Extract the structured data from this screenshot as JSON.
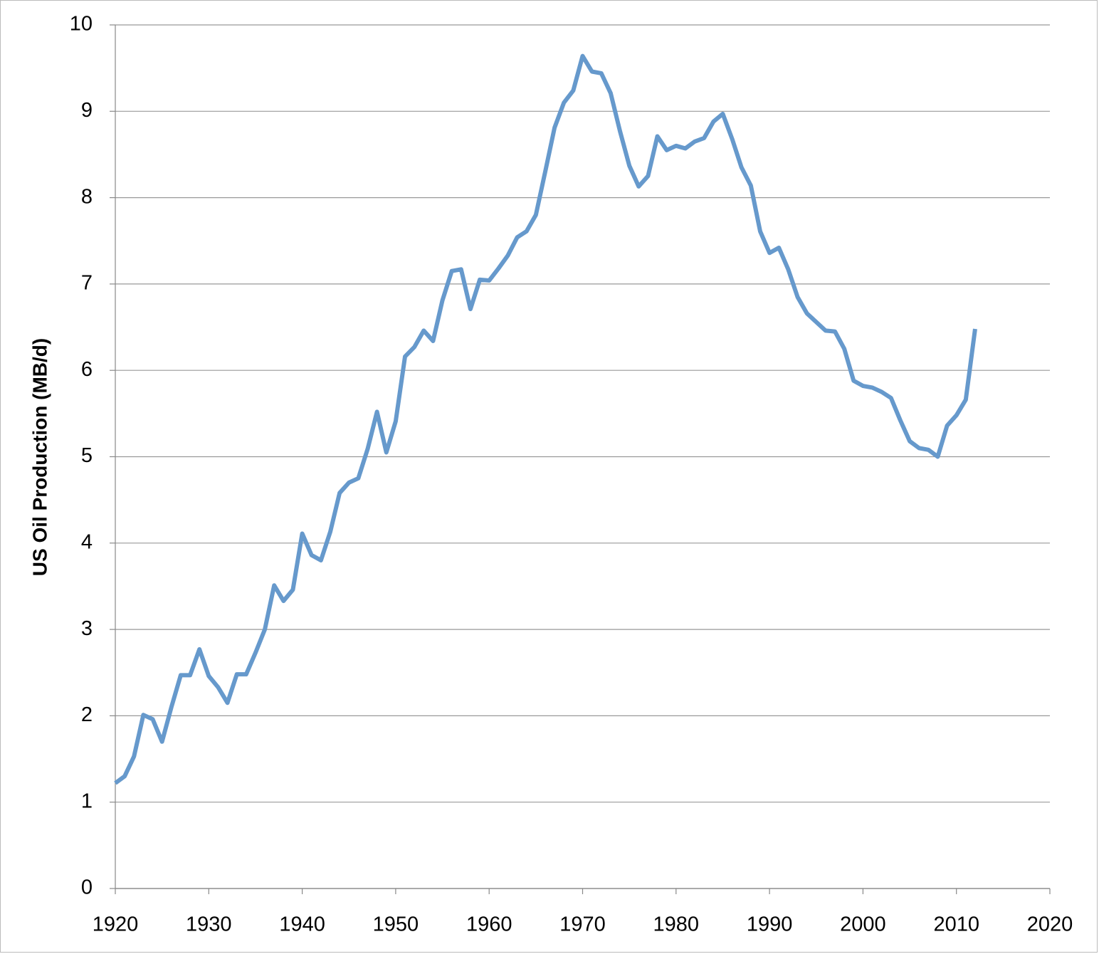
{
  "chart_data": {
    "type": "line",
    "y_label": "US Oil Production (MB/d)",
    "x": [
      1920,
      1921,
      1922,
      1923,
      1924,
      1925,
      1926,
      1927,
      1928,
      1929,
      1930,
      1931,
      1932,
      1933,
      1934,
      1935,
      1936,
      1937,
      1938,
      1939,
      1940,
      1941,
      1942,
      1943,
      1944,
      1945,
      1946,
      1947,
      1948,
      1949,
      1950,
      1951,
      1952,
      1953,
      1954,
      1955,
      1956,
      1957,
      1958,
      1959,
      1960,
      1961,
      1962,
      1963,
      1964,
      1965,
      1966,
      1967,
      1968,
      1969,
      1970,
      1971,
      1972,
      1973,
      1974,
      1975,
      1976,
      1977,
      1978,
      1979,
      1980,
      1981,
      1982,
      1983,
      1984,
      1985,
      1986,
      1987,
      1988,
      1989,
      1990,
      1991,
      1992,
      1993,
      1994,
      1995,
      1996,
      1997,
      1998,
      1999,
      2000,
      2001,
      2002,
      2003,
      2004,
      2005,
      2006,
      2007,
      2008,
      2009,
      2010,
      2011,
      2012
    ],
    "series": [
      {
        "color": "#6699cc",
        "values": [
          1.22,
          1.3,
          1.53,
          2.01,
          1.96,
          1.7,
          2.1,
          2.47,
          2.47,
          2.77,
          2.46,
          2.33,
          2.15,
          2.48,
          2.48,
          2.73,
          3.0,
          3.51,
          3.33,
          3.46,
          4.11,
          3.86,
          3.8,
          4.13,
          4.58,
          4.7,
          4.75,
          5.09,
          5.52,
          5.05,
          5.41,
          6.16,
          6.27,
          6.46,
          6.34,
          6.81,
          7.15,
          7.17,
          6.71,
          7.05,
          7.04,
          7.18,
          7.33,
          7.54,
          7.61,
          7.8,
          8.3,
          8.81,
          9.1,
          9.24,
          9.64,
          9.46,
          9.44,
          9.21,
          8.77,
          8.37,
          8.13,
          8.25,
          8.71,
          8.55,
          8.6,
          8.57,
          8.65,
          8.69,
          8.88,
          8.97,
          8.68,
          8.35,
          8.14,
          7.61,
          7.36,
          7.42,
          7.17,
          6.85,
          6.66,
          6.56,
          6.46,
          6.45,
          6.25,
          5.88,
          5.82,
          5.8,
          5.75,
          5.68,
          5.42,
          5.18,
          5.1,
          5.08,
          5.0,
          5.36,
          5.48,
          5.66,
          6.48
        ]
      }
    ],
    "xlim": [
      1920,
      2020
    ],
    "xticks": [
      1920,
      1930,
      1940,
      1950,
      1960,
      1970,
      1980,
      1990,
      2000,
      2010,
      2020
    ],
    "ylim": [
      0,
      10
    ],
    "yticks": [
      0,
      1,
      2,
      3,
      4,
      5,
      6,
      7,
      8,
      9,
      10
    ],
    "grid": true
  }
}
